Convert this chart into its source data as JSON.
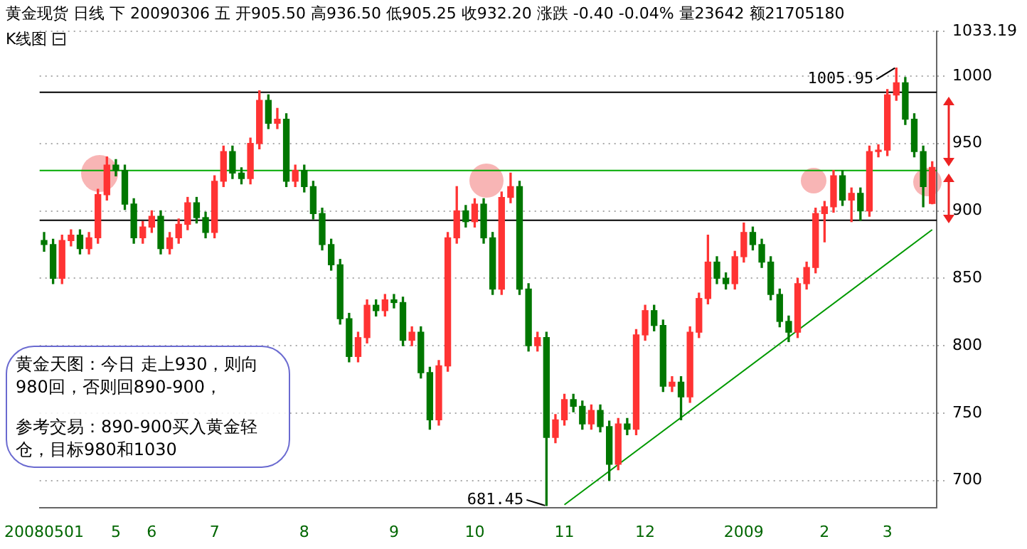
{
  "chart_data": {
    "type": "candlestick",
    "title": "黄金现货 日线 下 20090306 五 开905.50 高936.50 低905.25 收932.20 涨跌 -0.40 -0.04% 量23642 额21705180",
    "subtitle": "K线图",
    "categories": [
      "20080501",
      null,
      null,
      null,
      null,
      null,
      null,
      null,
      "5",
      null,
      null,
      null,
      "6",
      null,
      null,
      null,
      null,
      null,
      null,
      "7",
      null,
      null,
      null,
      null,
      null,
      null,
      null,
      null,
      null,
      "8",
      null,
      null,
      null,
      null,
      null,
      null,
      null,
      null,
      null,
      "9",
      null,
      null,
      null,
      null,
      null,
      null,
      null,
      null,
      "10",
      null,
      null,
      null,
      null,
      null,
      null,
      null,
      null,
      null,
      "11",
      null,
      null,
      null,
      null,
      null,
      null,
      null,
      null,
      "12",
      null,
      null,
      null,
      null,
      null,
      null,
      null,
      null,
      null,
      null,
      "2009",
      null,
      null,
      null,
      null,
      null,
      null,
      null,
      null,
      "2",
      null,
      null,
      null,
      null,
      null,
      null,
      "3",
      null,
      null,
      null,
      null,
      null
    ],
    "ohlc": [
      [
        878,
        884,
        870,
        875
      ],
      [
        875,
        879,
        846,
        850
      ],
      [
        850,
        882,
        846,
        878
      ],
      [
        878,
        886,
        874,
        882
      ],
      [
        882,
        886,
        868,
        872
      ],
      [
        872,
        884,
        868,
        880
      ],
      [
        880,
        916,
        876,
        912
      ],
      [
        912,
        940,
        908,
        934
      ],
      [
        934,
        938,
        926,
        930
      ],
      [
        930,
        934,
        901,
        905
      ],
      [
        905,
        909,
        876,
        880
      ],
      [
        880,
        892,
        876,
        888
      ],
      [
        888,
        900,
        884,
        896
      ],
      [
        896,
        900,
        868,
        872
      ],
      [
        872,
        884,
        868,
        880
      ],
      [
        880,
        894,
        876,
        890
      ],
      [
        890,
        910,
        886,
        906
      ],
      [
        906,
        910,
        891,
        895
      ],
      [
        895,
        899,
        880,
        884
      ],
      [
        884,
        926,
        880,
        922
      ],
      [
        922,
        948,
        918,
        944
      ],
      [
        944,
        948,
        924,
        928
      ],
      [
        928,
        932,
        920,
        924
      ],
      [
        924,
        954,
        920,
        950
      ],
      [
        950,
        989,
        946,
        982
      ],
      [
        982,
        986,
        961,
        965
      ],
      [
        965,
        976,
        961,
        968
      ],
      [
        968,
        972,
        918,
        922
      ],
      [
        922,
        934,
        918,
        930
      ],
      [
        930,
        934,
        914,
        918
      ],
      [
        918,
        922,
        894,
        898
      ],
      [
        898,
        902,
        871,
        875
      ],
      [
        875,
        879,
        856,
        860
      ],
      [
        860,
        864,
        816,
        820
      ],
      [
        820,
        824,
        788,
        792
      ],
      [
        792,
        810,
        788,
        806
      ],
      [
        806,
        834,
        802,
        830
      ],
      [
        830,
        834,
        822,
        826
      ],
      [
        826,
        838,
        822,
        834
      ],
      [
        834,
        838,
        828,
        832
      ],
      [
        832,
        836,
        800,
        804
      ],
      [
        804,
        814,
        800,
        810
      ],
      [
        810,
        814,
        776,
        780
      ],
      [
        780,
        784,
        738,
        745
      ],
      [
        745,
        789,
        741,
        785
      ],
      [
        785,
        884,
        781,
        880
      ],
      [
        880,
        918,
        876,
        900
      ],
      [
        900,
        904,
        888,
        892
      ],
      [
        892,
        909,
        888,
        905
      ],
      [
        905,
        909,
        876,
        880
      ],
      [
        880,
        884,
        838,
        842
      ],
      [
        842,
        914,
        838,
        910
      ],
      [
        910,
        928,
        906,
        918
      ],
      [
        918,
        922,
        838,
        842
      ],
      [
        842,
        846,
        796,
        800
      ],
      [
        800,
        810,
        796,
        806
      ],
      [
        806,
        810,
        681.45,
        732
      ],
      [
        732,
        749,
        728,
        745
      ],
      [
        745,
        764,
        741,
        760
      ],
      [
        760,
        764,
        751,
        755
      ],
      [
        755,
        759,
        738,
        742
      ],
      [
        742,
        756,
        738,
        752
      ],
      [
        752,
        756,
        736,
        740
      ],
      [
        740,
        744,
        700,
        712
      ],
      [
        712,
        746,
        708,
        742
      ],
      [
        742,
        746,
        734,
        738
      ],
      [
        738,
        812,
        734,
        808
      ],
      [
        808,
        830,
        804,
        826
      ],
      [
        826,
        830,
        811,
        815
      ],
      [
        815,
        819,
        766,
        770
      ],
      [
        770,
        777,
        766,
        773
      ],
      [
        773,
        777,
        745,
        762
      ],
      [
        762,
        814,
        758,
        810
      ],
      [
        810,
        839,
        806,
        835
      ],
      [
        835,
        882,
        831,
        862
      ],
      [
        862,
        866,
        846,
        850
      ],
      [
        850,
        854,
        842,
        846
      ],
      [
        846,
        870,
        842,
        866
      ],
      [
        866,
        891,
        862,
        884
      ],
      [
        884,
        888,
        871,
        875
      ],
      [
        875,
        879,
        858,
        862
      ],
      [
        862,
        866,
        834,
        838
      ],
      [
        838,
        842,
        814,
        818
      ],
      [
        818,
        822,
        803,
        810
      ],
      [
        810,
        850,
        806,
        846
      ],
      [
        846,
        862,
        842,
        858
      ],
      [
        858,
        902,
        854,
        898
      ],
      [
        898,
        907,
        877,
        903
      ],
      [
        903,
        930,
        899,
        926
      ],
      [
        926,
        930,
        904,
        908
      ],
      [
        908,
        917,
        892,
        913
      ],
      [
        913,
        917,
        893,
        900
      ],
      [
        900,
        948,
        896,
        944
      ],
      [
        944,
        949,
        940,
        945
      ],
      [
        945,
        990,
        941,
        986
      ],
      [
        986,
        1005.95,
        982,
        995
      ],
      [
        995,
        999,
        964,
        968
      ],
      [
        968,
        972,
        940,
        944
      ],
      [
        944,
        948,
        903,
        918
      ],
      [
        905.5,
        936.5,
        905.25,
        932.2
      ]
    ],
    "series": [
      {
        "type": "line",
        "color": "#009900",
        "values": [
          null,
          null,
          null,
          null,
          null,
          null,
          null,
          null,
          null,
          null,
          null,
          null,
          null,
          null,
          null,
          null,
          null,
          null,
          null,
          null,
          null,
          null,
          null,
          null,
          null,
          null,
          null,
          null,
          null,
          null,
          null,
          null,
          null,
          null,
          null,
          null,
          null,
          null,
          null,
          null,
          null,
          null,
          null,
          null,
          null,
          null,
          null,
          null,
          null,
          null,
          null,
          null,
          null,
          null,
          null,
          null,
          null,
          null,
          682,
          null,
          null,
          null,
          null,
          null,
          null,
          null,
          null,
          null,
          null,
          null,
          null,
          null,
          null,
          null,
          null,
          null,
          null,
          null,
          null,
          null,
          null,
          null,
          null,
          null,
          null,
          null,
          null,
          null,
          null,
          null,
          null,
          null,
          null,
          null,
          null,
          null,
          null,
          null,
          null,
          886
        ]
      }
    ],
    "marker": "none",
    "ylim": [
      680,
      1033.19
    ],
    "yticks": [
      700,
      750,
      800,
      850,
      900,
      950,
      1000,
      1033.19
    ],
    "grid": "y",
    "ref_lines": [
      {
        "axis": "y",
        "value": 988,
        "color": "#000000"
      },
      {
        "axis": "y",
        "value": 930,
        "color": "#00aa00"
      },
      {
        "axis": "y",
        "value": 893,
        "color": "#000000"
      }
    ],
    "annotations": [
      "1005.95",
      "681.45",
      "黄金天图：今日 走上930，则向980回，否则回890-900，",
      "参考交易：890-900买入黄金轻仓，目标980和1030"
    ]
  }
}
